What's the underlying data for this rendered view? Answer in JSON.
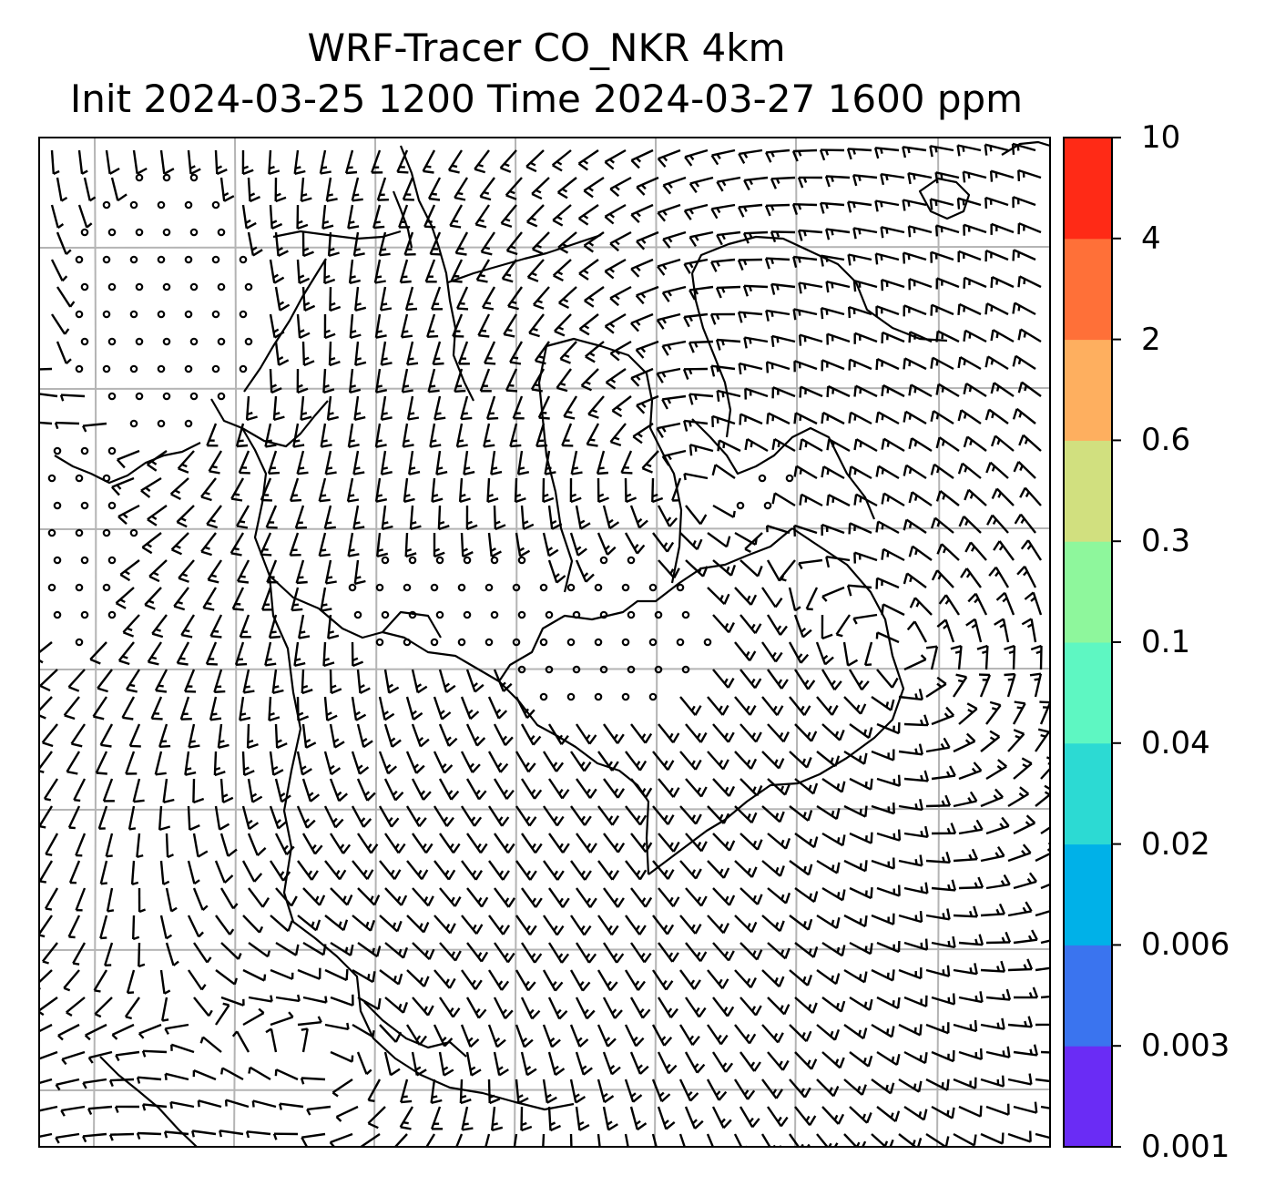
{
  "title": {
    "line1": "WRF-Tracer CO_NKR 4km",
    "line2": "Init 2024-03-25 1200 Time 2024-03-27 1600 ppm"
  },
  "colorbar": {
    "unit": "ppm",
    "levels": [
      "0.001",
      "0.003",
      "0.006",
      "0.02",
      "0.04",
      "0.1",
      "0.3",
      "0.6",
      "2",
      "4",
      "10"
    ],
    "colors": [
      "#6a2cf5",
      "#3a74ef",
      "#00b1e8",
      "#2cdad3",
      "#5ef7c2",
      "#8ef79c",
      "#d1e07f",
      "#feaf5f",
      "#ff7038",
      "#ff2a16"
    ]
  },
  "map": {
    "gridlines": true,
    "gridline_color": "#b4b4b4",
    "vector_field": "wind-barbs",
    "tracer_fill": "none visible"
  }
}
